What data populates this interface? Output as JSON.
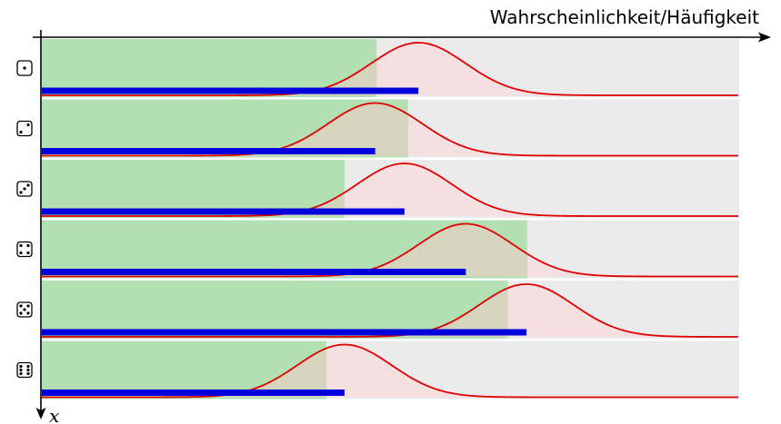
{
  "axis": {
    "horizontal_label": "Wahrscheinlichkeit/Häufigkeit",
    "vertical_label": "x"
  },
  "colors": {
    "row_background": "#ebebeb",
    "green_band": "#b3e0b3",
    "pink_band": "#f6dfe0",
    "overlap": "#d6d4bd",
    "curve": "#e00000",
    "bar": "#0000dd"
  },
  "chart_data": {
    "type": "bar",
    "categories": [
      "1",
      "2",
      "3",
      "4",
      "5",
      "6"
    ],
    "die_faces": [
      "die-face-1",
      "die-face-2",
      "die-face-3",
      "die-face-4",
      "die-face-5",
      "die-face-6"
    ],
    "xlim": [
      0,
      1
    ],
    "rows": [
      {
        "face": 1,
        "green_extent": 0.48,
        "bar_value": 0.54,
        "curve_peak": 0.54
      },
      {
        "face": 2,
        "green_extent": 0.525,
        "bar_value": 0.478,
        "curve_peak": 0.478
      },
      {
        "face": 3,
        "green_extent": 0.434,
        "bar_value": 0.52,
        "curve_peak": 0.52
      },
      {
        "face": 4,
        "green_extent": 0.696,
        "bar_value": 0.608,
        "curve_peak": 0.608
      },
      {
        "face": 5,
        "green_extent": 0.668,
        "bar_value": 0.695,
        "curve_peak": 0.695
      },
      {
        "face": 6,
        "green_extent": 0.408,
        "bar_value": 0.434,
        "curve_peak": 0.434
      }
    ]
  }
}
